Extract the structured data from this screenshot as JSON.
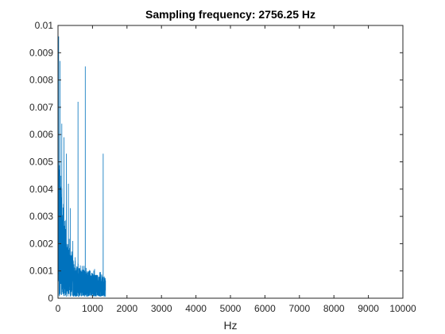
{
  "chart_data": {
    "type": "line",
    "title": "Sampling frequency: 2756.25 Hz",
    "xlabel": "Hz",
    "ylabel": "",
    "xlim": [
      0,
      10000
    ],
    "ylim": [
      0,
      0.01
    ],
    "xticks": [
      0,
      1000,
      2000,
      3000,
      4000,
      5000,
      6000,
      7000,
      8000,
      9000,
      10000
    ],
    "xtick_labels": [
      "0",
      "1000",
      "2000",
      "3000",
      "4000",
      "5000",
      "6000",
      "7000",
      "8000",
      "9000",
      "10000"
    ],
    "yticks": [
      0,
      0.001,
      0.002,
      0.003,
      0.004,
      0.005,
      0.006,
      0.007,
      0.008,
      0.009,
      0.01
    ],
    "ytick_labels": [
      "0",
      "0.001",
      "0.002",
      "0.003",
      "0.004",
      "0.005",
      "0.006",
      "0.007",
      "0.008",
      "0.009",
      "0.01"
    ],
    "grid": false,
    "box": true,
    "color": "#0072BD",
    "data_extent_hz": 1378,
    "peaks": [
      {
        "x": 20,
        "y": 0.0096
      },
      {
        "x": 60,
        "y": 0.0087
      },
      {
        "x": 110,
        "y": 0.0064
      },
      {
        "x": 170,
        "y": 0.0059
      },
      {
        "x": 240,
        "y": 0.0053
      },
      {
        "x": 300,
        "y": 0.0042
      },
      {
        "x": 360,
        "y": 0.0033
      },
      {
        "x": 430,
        "y": 0.0021
      },
      {
        "x": 500,
        "y": 0.0015
      },
      {
        "x": 580,
        "y": 0.0072
      },
      {
        "x": 640,
        "y": 0.0011
      },
      {
        "x": 790,
        "y": 0.0085
      },
      {
        "x": 900,
        "y": 0.001
      },
      {
        "x": 1000,
        "y": 0.0009
      },
      {
        "x": 1100,
        "y": 0.0008
      },
      {
        "x": 1310,
        "y": 0.0053
      }
    ]
  }
}
